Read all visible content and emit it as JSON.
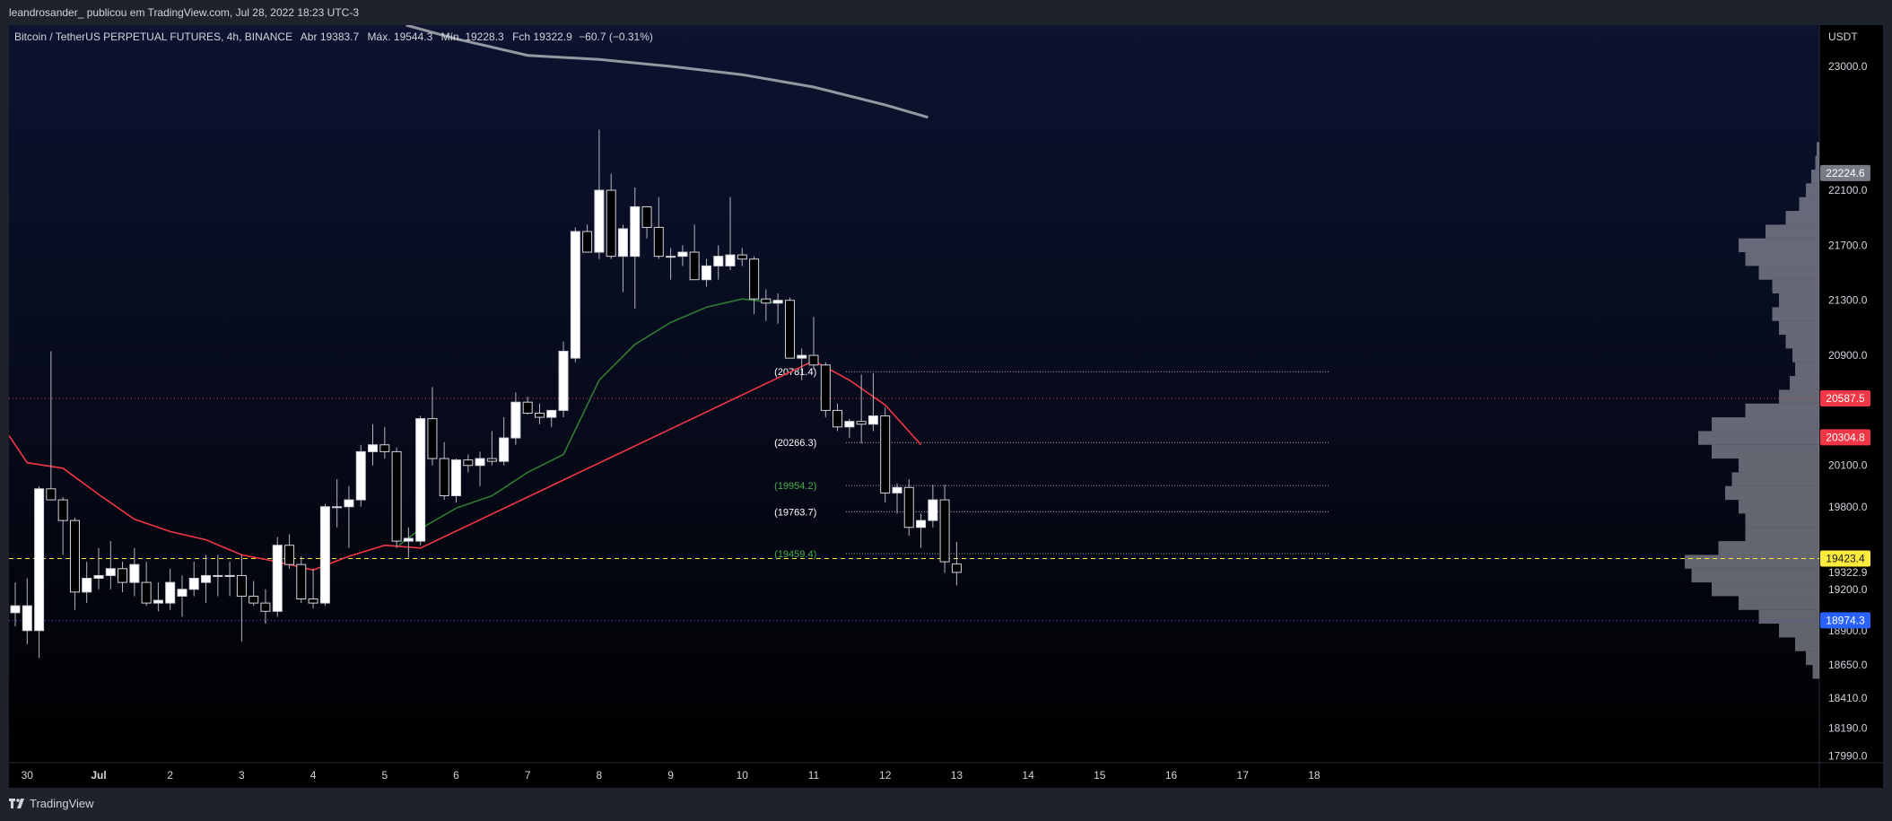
{
  "header": {
    "publish_line": "leandrosander_ publicou em TradingView.com, Jul 28, 2022 18:23 UTC-3"
  },
  "footer": {
    "brand": "TradingView"
  },
  "chart_data": {
    "type": "candlestick",
    "symbol_line": {
      "symbol": "Bitcoin / TetherUS PERPETUAL FUTURES, 4h, BINANCE",
      "open_label": "Abr",
      "open_value": "19383.7",
      "high_label": "Máx.",
      "high_value": "19544.3",
      "low_label": "Mín.",
      "low_value": "19228.3",
      "close_label": "Fch",
      "close_value": "19322.9",
      "change": "−60.7 (−0.31%)"
    },
    "price_axis": {
      "currency": "USDT",
      "ticks": [
        "23000.0",
        "22100.0",
        "21700.0",
        "21300.0",
        "20900.0",
        "20100.0",
        "19800.0",
        "19200.0",
        "18900.0",
        "18650.0",
        "18410.0",
        "18190.0",
        "17990.0"
      ],
      "range": [
        17940,
        23300
      ]
    },
    "time_axis": {
      "ticks": [
        {
          "label": "30",
          "day": -1
        },
        {
          "label": "Jul",
          "day": 0
        },
        {
          "label": "2",
          "day": 1
        },
        {
          "label": "3",
          "day": 2
        },
        {
          "label": "4",
          "day": 3
        },
        {
          "label": "5",
          "day": 4
        },
        {
          "label": "6",
          "day": 5
        },
        {
          "label": "7",
          "day": 6
        },
        {
          "label": "8",
          "day": 7
        },
        {
          "label": "9",
          "day": 8
        },
        {
          "label": "10",
          "day": 9
        },
        {
          "label": "11",
          "day": 10
        },
        {
          "label": "12",
          "day": 11
        },
        {
          "label": "13",
          "day": 12
        },
        {
          "label": "14",
          "day": 13
        },
        {
          "label": "15",
          "day": 14
        },
        {
          "label": "16",
          "day": 15
        },
        {
          "label": "17",
          "day": 16
        },
        {
          "label": "18",
          "day": 17
        }
      ]
    },
    "candles": [
      {
        "t": -1.833,
        "o": 20150,
        "h": 20200,
        "l": 20100,
        "c": 20150
      },
      {
        "t": -1.667,
        "o": 20080,
        "h": 20120,
        "l": 19350,
        "c": 19400
      },
      {
        "t": -1.5,
        "o": 19400,
        "h": 19450,
        "l": 18950,
        "c": 19020
      },
      {
        "t": -1.333,
        "o": 19080,
        "h": 19350,
        "l": 18950,
        "c": 19030
      },
      {
        "t": -1.167,
        "o": 19030,
        "h": 19250,
        "l": 18930,
        "c": 19080
      },
      {
        "t": -1,
        "o": 18900,
        "h": 19280,
        "l": 18800,
        "c": 19080
      },
      {
        "t": -0.833,
        "o": 18900,
        "h": 19950,
        "l": 18700,
        "c": 19930
      },
      {
        "t": -0.667,
        "o": 19930,
        "h": 20930,
        "l": 19850,
        "c": 19850
      },
      {
        "t": -0.5,
        "o": 19850,
        "h": 19870,
        "l": 19450,
        "c": 19700
      },
      {
        "t": -0.333,
        "o": 19700,
        "h": 19720,
        "l": 19050,
        "c": 19180
      },
      {
        "t": -0.167,
        "o": 19180,
        "h": 19400,
        "l": 19100,
        "c": 19280
      },
      {
        "t": 0,
        "o": 19280,
        "h": 19500,
        "l": 19200,
        "c": 19300
      },
      {
        "t": 0.167,
        "o": 19300,
        "h": 19550,
        "l": 19200,
        "c": 19350
      },
      {
        "t": 0.333,
        "o": 19350,
        "h": 19400,
        "l": 19180,
        "c": 19250
      },
      {
        "t": 0.5,
        "o": 19250,
        "h": 19500,
        "l": 19150,
        "c": 19380
      },
      {
        "t": 0.667,
        "o": 19250,
        "h": 19400,
        "l": 19080,
        "c": 19100
      },
      {
        "t": 0.833,
        "o": 19100,
        "h": 19250,
        "l": 19040,
        "c": 19120
      },
      {
        "t": 1,
        "o": 19100,
        "h": 19350,
        "l": 19050,
        "c": 19250
      },
      {
        "t": 1.167,
        "o": 19150,
        "h": 19300,
        "l": 19000,
        "c": 19200
      },
      {
        "t": 1.333,
        "o": 19200,
        "h": 19400,
        "l": 19150,
        "c": 19280
      },
      {
        "t": 1.5,
        "o": 19250,
        "h": 19450,
        "l": 19100,
        "c": 19300
      },
      {
        "t": 1.667,
        "o": 19300,
        "h": 19450,
        "l": 19150,
        "c": 19300
      },
      {
        "t": 1.833,
        "o": 19300,
        "h": 19400,
        "l": 19150,
        "c": 19300
      },
      {
        "t": 2,
        "o": 19300,
        "h": 19450,
        "l": 18820,
        "c": 19150
      },
      {
        "t": 2.167,
        "o": 19150,
        "h": 19260,
        "l": 19080,
        "c": 19100
      },
      {
        "t": 2.333,
        "o": 19100,
        "h": 19200,
        "l": 18950,
        "c": 19040
      },
      {
        "t": 2.5,
        "o": 19040,
        "h": 19580,
        "l": 19000,
        "c": 19520
      },
      {
        "t": 2.667,
        "o": 19520,
        "h": 19600,
        "l": 19350,
        "c": 19380
      },
      {
        "t": 2.833,
        "o": 19380,
        "h": 19440,
        "l": 19100,
        "c": 19130
      },
      {
        "t": 3,
        "o": 19130,
        "h": 19350,
        "l": 19060,
        "c": 19100
      },
      {
        "t": 3.167,
        "o": 19100,
        "h": 19820,
        "l": 19080,
        "c": 19800
      },
      {
        "t": 3.333,
        "o": 19800,
        "h": 20000,
        "l": 19650,
        "c": 19800
      },
      {
        "t": 3.5,
        "o": 19800,
        "h": 19950,
        "l": 19500,
        "c": 19850
      },
      {
        "t": 3.667,
        "o": 19850,
        "h": 20250,
        "l": 19800,
        "c": 20200
      },
      {
        "t": 3.833,
        "o": 20200,
        "h": 20400,
        "l": 20100,
        "c": 20250
      },
      {
        "t": 4,
        "o": 20250,
        "h": 20380,
        "l": 20150,
        "c": 20200
      },
      {
        "t": 4.167,
        "o": 20200,
        "h": 20230,
        "l": 19500,
        "c": 19550
      },
      {
        "t": 4.333,
        "o": 19550,
        "h": 19650,
        "l": 19430,
        "c": 19570
      },
      {
        "t": 4.5,
        "o": 19550,
        "h": 20460,
        "l": 19520,
        "c": 20440
      },
      {
        "t": 4.667,
        "o": 20440,
        "h": 20670,
        "l": 20100,
        "c": 20150
      },
      {
        "t": 4.833,
        "o": 20150,
        "h": 20270,
        "l": 19850,
        "c": 19880
      },
      {
        "t": 5,
        "o": 19880,
        "h": 20150,
        "l": 19830,
        "c": 20140
      },
      {
        "t": 5.167,
        "o": 20140,
        "h": 20180,
        "l": 20050,
        "c": 20100
      },
      {
        "t": 5.333,
        "o": 20100,
        "h": 20200,
        "l": 19950,
        "c": 20150
      },
      {
        "t": 5.5,
        "o": 20150,
        "h": 20350,
        "l": 20100,
        "c": 20130
      },
      {
        "t": 5.667,
        "o": 20130,
        "h": 20450,
        "l": 20100,
        "c": 20300
      },
      {
        "t": 5.833,
        "o": 20300,
        "h": 20630,
        "l": 20250,
        "c": 20560
      },
      {
        "t": 6,
        "o": 20560,
        "h": 20600,
        "l": 20470,
        "c": 20480
      },
      {
        "t": 6.167,
        "o": 20480,
        "h": 20550,
        "l": 20400,
        "c": 20450
      },
      {
        "t": 6.333,
        "o": 20450,
        "h": 20500,
        "l": 20380,
        "c": 20500
      },
      {
        "t": 6.5,
        "o": 20500,
        "h": 21000,
        "l": 20450,
        "c": 20930
      },
      {
        "t": 6.667,
        "o": 20880,
        "h": 21830,
        "l": 20850,
        "c": 21800
      },
      {
        "t": 6.833,
        "o": 21800,
        "h": 21850,
        "l": 21680,
        "c": 21650
      },
      {
        "t": 7,
        "o": 21650,
        "h": 22540,
        "l": 21600,
        "c": 22100
      },
      {
        "t": 7.167,
        "o": 22100,
        "h": 22220,
        "l": 21600,
        "c": 21620
      },
      {
        "t": 7.333,
        "o": 21620,
        "h": 21850,
        "l": 21360,
        "c": 21820
      },
      {
        "t": 7.5,
        "o": 21620,
        "h": 22120,
        "l": 21240,
        "c": 21980
      },
      {
        "t": 7.667,
        "o": 21980,
        "h": 21980,
        "l": 21750,
        "c": 21830
      },
      {
        "t": 7.833,
        "o": 21830,
        "h": 22050,
        "l": 21600,
        "c": 21620
      },
      {
        "t": 8,
        "o": 21620,
        "h": 21680,
        "l": 21450,
        "c": 21620
      },
      {
        "t": 8.167,
        "o": 21620,
        "h": 21700,
        "l": 21550,
        "c": 21650
      },
      {
        "t": 8.333,
        "o": 21650,
        "h": 21850,
        "l": 21450,
        "c": 21450
      },
      {
        "t": 8.5,
        "o": 21450,
        "h": 21600,
        "l": 21400,
        "c": 21550
      },
      {
        "t": 8.667,
        "o": 21550,
        "h": 21700,
        "l": 21450,
        "c": 21620
      },
      {
        "t": 8.833,
        "o": 21550,
        "h": 22050,
        "l": 21520,
        "c": 21630
      },
      {
        "t": 9,
        "o": 21630,
        "h": 21680,
        "l": 21550,
        "c": 21600
      },
      {
        "t": 9.167,
        "o": 21600,
        "h": 21620,
        "l": 21200,
        "c": 21310
      },
      {
        "t": 9.333,
        "o": 21310,
        "h": 21380,
        "l": 21150,
        "c": 21280
      },
      {
        "t": 9.5,
        "o": 21280,
        "h": 21350,
        "l": 21130,
        "c": 21300
      },
      {
        "t": 9.667,
        "o": 21300,
        "h": 21320,
        "l": 20880,
        "c": 20880
      },
      {
        "t": 9.833,
        "o": 20880,
        "h": 20950,
        "l": 20720,
        "c": 20900
      },
      {
        "t": 10,
        "o": 20900,
        "h": 21180,
        "l": 20800,
        "c": 20830
      },
      {
        "t": 10.167,
        "o": 20830,
        "h": 20850,
        "l": 20450,
        "c": 20500
      },
      {
        "t": 10.333,
        "o": 20500,
        "h": 20550,
        "l": 20350,
        "c": 20380
      },
      {
        "t": 10.5,
        "o": 20380,
        "h": 20440,
        "l": 20300,
        "c": 20420
      },
      {
        "t": 10.667,
        "o": 20420,
        "h": 20760,
        "l": 20260,
        "c": 20400
      },
      {
        "t": 10.833,
        "o": 20400,
        "h": 20770,
        "l": 20350,
        "c": 20460
      },
      {
        "t": 11,
        "o": 20460,
        "h": 20520,
        "l": 19830,
        "c": 19900
      },
      {
        "t": 11.167,
        "o": 19900,
        "h": 19970,
        "l": 19750,
        "c": 19940
      },
      {
        "t": 11.333,
        "o": 19940,
        "h": 20000,
        "l": 19590,
        "c": 19650
      },
      {
        "t": 11.5,
        "o": 19650,
        "h": 19750,
        "l": 19500,
        "c": 19700
      },
      {
        "t": 11.667,
        "o": 19700,
        "h": 19960,
        "l": 19650,
        "c": 19850
      },
      {
        "t": 11.833,
        "o": 19850,
        "h": 19960,
        "l": 19320,
        "c": 19400
      },
      {
        "t": 12,
        "o": 19383.7,
        "h": 19544.3,
        "l": 19228.3,
        "c": 19322.9
      }
    ],
    "moving_averages": [
      {
        "color": "#f23645",
        "points": [
          [
            -2,
            20620
          ],
          [
            -1.4,
            20430
          ],
          [
            -1,
            20120
          ],
          [
            -0.5,
            20080
          ],
          [
            0,
            19890
          ],
          [
            0.5,
            19710
          ],
          [
            1,
            19620
          ],
          [
            1.5,
            19560
          ],
          [
            2,
            19450
          ],
          [
            2.5,
            19400
          ],
          [
            3,
            19340
          ],
          [
            3.5,
            19440
          ],
          [
            4,
            19520
          ],
          [
            4.5,
            19500
          ],
          [
            10,
            20860
          ],
          [
            10.5,
            20720
          ],
          [
            11,
            20540
          ],
          [
            11.5,
            20250
          ]
        ]
      },
      {
        "color": "#2e7d32",
        "points": [
          [
            4.2,
            19520
          ],
          [
            4.5,
            19640
          ],
          [
            5,
            19790
          ],
          [
            5.5,
            19880
          ],
          [
            6,
            20050
          ],
          [
            6.5,
            20180
          ],
          [
            7,
            20720
          ],
          [
            7.5,
            20980
          ],
          [
            8,
            21140
          ],
          [
            8.5,
            21250
          ],
          [
            9,
            21310
          ],
          [
            9.5,
            21280
          ]
        ]
      },
      {
        "color": "#9598a1",
        "points": [
          [
            4.3,
            23300
          ],
          [
            5,
            23200
          ],
          [
            6,
            23080
          ],
          [
            7,
            23050
          ],
          [
            8,
            23000
          ],
          [
            9,
            22940
          ],
          [
            10,
            22850
          ],
          [
            11,
            22720
          ],
          [
            11.6,
            22630
          ]
        ]
      }
    ],
    "horizontal_levels": [
      {
        "price": 20587.5,
        "color": "#f23645",
        "style": "dotted"
      },
      {
        "price": 19423.4,
        "color": "#ffeb3b",
        "style": "dashed"
      },
      {
        "price": 18974.3,
        "color": "#2962ff",
        "style": "dotted"
      }
    ],
    "annotated_levels": [
      {
        "label": "(20781.4)",
        "price": 20781.4,
        "color": "#ffffff"
      },
      {
        "label": "(20266.3)",
        "price": 20266.3,
        "color": "#ffffff"
      },
      {
        "label": "(19954.2)",
        "price": 19954.2,
        "color": "#4caf50"
      },
      {
        "label": "(19763.7)",
        "price": 19763.7,
        "color": "#ffffff"
      },
      {
        "label": "(19459.4)",
        "price": 19459.4,
        "color": "#4caf50"
      }
    ],
    "price_tags": [
      {
        "label": "22224.6",
        "price": 22224.6,
        "bg": "#787b86",
        "fg": "#ffffff"
      },
      {
        "label": "20587.5",
        "price": 20587.5,
        "bg": "#f23645",
        "fg": "#ffffff"
      },
      {
        "label": "20304.8",
        "price": 20304.8,
        "bg": "#f23645",
        "fg": "#ffffff"
      },
      {
        "label": "19423.4",
        "price": 19423.4,
        "bg": "#ffeb3b",
        "fg": "#131722"
      },
      {
        "label": "18974.3",
        "price": 18974.3,
        "bg": "#2962ff",
        "fg": "#ffffff"
      }
    ],
    "price_axis_plain_labels": [
      {
        "label": "19322.9",
        "price": 19322.9
      }
    ],
    "volume_profile": {
      "color": "#b2b5be",
      "bins": [
        [
          18600,
          0.05
        ],
        [
          18700,
          0.1
        ],
        [
          18800,
          0.18
        ],
        [
          18900,
          0.3
        ],
        [
          19000,
          0.45
        ],
        [
          19100,
          0.6
        ],
        [
          19200,
          0.8
        ],
        [
          19300,
          0.95
        ],
        [
          19400,
          1.0
        ],
        [
          19500,
          0.75
        ],
        [
          19600,
          0.55
        ],
        [
          19700,
          0.55
        ],
        [
          19800,
          0.6
        ],
        [
          19900,
          0.7
        ],
        [
          20000,
          0.65
        ],
        [
          20100,
          0.6
        ],
        [
          20200,
          0.8
        ],
        [
          20300,
          0.9
        ],
        [
          20400,
          0.8
        ],
        [
          20500,
          0.55
        ],
        [
          20600,
          0.3
        ],
        [
          20700,
          0.22
        ],
        [
          20800,
          0.18
        ],
        [
          20900,
          0.2
        ],
        [
          21000,
          0.25
        ],
        [
          21100,
          0.3
        ],
        [
          21200,
          0.35
        ],
        [
          21300,
          0.3
        ],
        [
          21400,
          0.35
        ],
        [
          21500,
          0.45
        ],
        [
          21600,
          0.55
        ],
        [
          21700,
          0.6
        ],
        [
          21800,
          0.4
        ],
        [
          21900,
          0.25
        ],
        [
          22000,
          0.15
        ],
        [
          22100,
          0.1
        ],
        [
          22200,
          0.06
        ],
        [
          22300,
          0.03
        ],
        [
          22400,
          0.02
        ]
      ]
    },
    "colors": {
      "up_candle": "#ffffff",
      "down_candle": "#000000",
      "wick": "#b2b5be",
      "text": "#d1d4dc"
    }
  }
}
